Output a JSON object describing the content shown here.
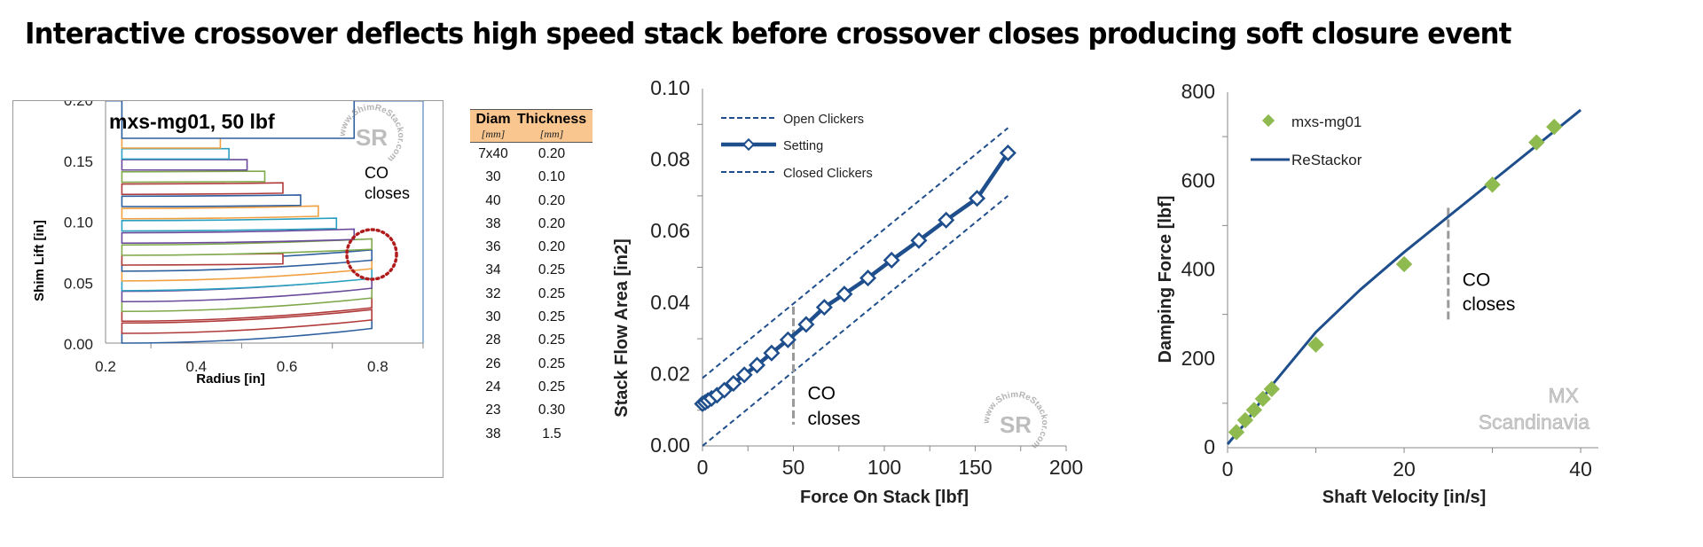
{
  "title": "Interactive crossover deflects high speed stack before crossover closes producing soft closure event",
  "watermark": {
    "text_top": "www.ShimReStackor.com",
    "logo": "SR"
  },
  "shim_table": {
    "headers": [
      "Diam",
      "Thickness"
    ],
    "units": [
      "[mm]",
      "[mm]"
    ],
    "rows": [
      [
        "7x40",
        "0.20"
      ],
      [
        "30",
        "0.10"
      ],
      [
        "40",
        "0.20"
      ],
      [
        "38",
        "0.20"
      ],
      [
        "36",
        "0.20"
      ],
      [
        "34",
        "0.25"
      ],
      [
        "32",
        "0.25"
      ],
      [
        "30",
        "0.25"
      ],
      [
        "28",
        "0.25"
      ],
      [
        "26",
        "0.25"
      ],
      [
        "24",
        "0.25"
      ],
      [
        "23",
        "0.30"
      ],
      [
        "38",
        "1.5"
      ]
    ]
  },
  "colors": {
    "navy": "#1f4e8c",
    "green": "#8fba4f",
    "orange": "#f0a040",
    "red_circle": "#b01c1c",
    "dashed_marker": "#9a9a9a",
    "table_header": "#fac690"
  },
  "chart_data": [
    {
      "type": "shim-deflection",
      "title": "mxs-mg01, 50 lbf",
      "xlabel": "Radius [in]",
      "ylabel": "Shim Lift [in]",
      "xlim": [
        0.2,
        0.9
      ],
      "ylim": [
        0.0,
        0.2
      ],
      "xticks": [
        "0.2",
        "0.4",
        "0.6",
        "0.8"
      ],
      "yticks": [
        "0.00",
        "0.05",
        "0.10",
        "0.15",
        "0.20"
      ],
      "annotation": "CO closes",
      "shims": [
        {
          "r_out": 0.787,
          "y0": 0.0,
          "lift": 0.012,
          "color": "#2e5f9e"
        },
        {
          "r_out": 0.787,
          "y0": 0.008,
          "lift": 0.011,
          "color": "#b03a3a"
        },
        {
          "r_out": 0.787,
          "y0": 0.018,
          "lift": 0.011,
          "color": "#b03a3a"
        },
        {
          "r_out": 0.787,
          "y0": 0.026,
          "lift": 0.011,
          "color": "#7fa84a"
        },
        {
          "r_out": 0.787,
          "y0": 0.034,
          "lift": 0.011,
          "color": "#6a4a9a"
        },
        {
          "r_out": 0.787,
          "y0": 0.043,
          "lift": 0.01,
          "color": "#2aa0c0"
        },
        {
          "r_out": 0.787,
          "y0": 0.051,
          "lift": 0.01,
          "color": "#f0a040"
        },
        {
          "r_out": 0.787,
          "y0": 0.059,
          "lift": 0.009,
          "color": "#2e5f9e"
        },
        {
          "r_out": 0.591,
          "y0": 0.064,
          "lift": 0.001,
          "color": "#b03a3a"
        },
        {
          "r_out": 0.787,
          "y0": 0.072,
          "lift": 0.005,
          "color": "#7fa84a"
        },
        {
          "r_out": 0.748,
          "y0": 0.082,
          "lift": 0.003,
          "color": "#6a4a9a"
        },
        {
          "r_out": 0.709,
          "y0": 0.092,
          "lift": 0.002,
          "color": "#2aa0c0"
        },
        {
          "r_out": 0.669,
          "y0": 0.102,
          "lift": 0.002,
          "color": "#f0a040"
        },
        {
          "r_out": 0.63,
          "y0": 0.112,
          "lift": 0.001,
          "color": "#2e5f9e"
        },
        {
          "r_out": 0.591,
          "y0": 0.122,
          "lift": 0.001,
          "color": "#b03a3a"
        },
        {
          "r_out": 0.551,
          "y0": 0.132,
          "lift": 0.0005,
          "color": "#7fa84a"
        },
        {
          "r_out": 0.512,
          "y0": 0.142,
          "lift": 0.0,
          "color": "#6a4a9a"
        },
        {
          "r_out": 0.472,
          "y0": 0.151,
          "lift": 0.0,
          "color": "#2aa0c0"
        },
        {
          "r_out": 0.453,
          "y0": 0.16,
          "lift": 0.0,
          "color": "#f0a040"
        },
        {
          "r_out": 0.748,
          "y0": 0.168,
          "lift": 0.0,
          "color": "#2e5f9e",
          "height": 0.032
        }
      ],
      "r_in": 0.236
    },
    {
      "type": "line",
      "xlabel": "Force On Stack [lbf]",
      "ylabel": "Stack Flow Area [in2]",
      "xlim": [
        0,
        200
      ],
      "ylim": [
        0.0,
        0.1
      ],
      "xticks": [
        "0",
        "50",
        "100",
        "150",
        "200"
      ],
      "yticks": [
        "0.00",
        "0.02",
        "0.04",
        "0.06",
        "0.08",
        "0.10"
      ],
      "legend": [
        "Open Clickers",
        "Setting",
        "Closed Clickers"
      ],
      "annotation": "CO closes",
      "annotation_x": 50,
      "series": [
        {
          "name": "Open Clickers",
          "style": "dashed",
          "x": [
            0,
            168
          ],
          "y": [
            0.019,
            0.089
          ]
        },
        {
          "name": "Setting",
          "style": "solid-marker",
          "x": [
            0,
            1.5,
            3,
            5,
            8,
            12,
            17,
            23,
            30,
            38,
            47,
            57,
            67,
            78,
            91,
            104,
            119,
            134,
            151,
            168
          ],
          "y": [
            0.0118,
            0.0122,
            0.0127,
            0.0133,
            0.0142,
            0.0156,
            0.0175,
            0.0199,
            0.0226,
            0.026,
            0.0297,
            0.034,
            0.0388,
            0.0425,
            0.047,
            0.052,
            0.0575,
            0.0632,
            0.0693,
            0.082
          ]
        },
        {
          "name": "Closed Clickers",
          "style": "dashed",
          "x": [
            0,
            168
          ],
          "y": [
            0.0,
            0.07
          ]
        }
      ]
    },
    {
      "type": "scatter+line",
      "xlabel": "Shaft Velocity [in/s]",
      "ylabel": "Damping Force [lbf]",
      "xlim": [
        0,
        42
      ],
      "ylim": [
        0,
        800
      ],
      "xticks": [
        "0",
        "20",
        "40"
      ],
      "yticks": [
        "0",
        "200",
        "400",
        "600",
        "800"
      ],
      "legend": [
        "mxs-mg01",
        "ReStackor"
      ],
      "annotation": "CO closes",
      "annotation_x": 25,
      "watermark": [
        "MX",
        "Scandinavia"
      ],
      "series": [
        {
          "name": "mxs-mg01",
          "style": "marker",
          "x": [
            1,
            2,
            3,
            4,
            5,
            10,
            20,
            30,
            35,
            37
          ],
          "y": [
            35,
            62,
            85,
            110,
            132,
            232,
            413,
            592,
            687,
            722
          ]
        },
        {
          "name": "ReStackor",
          "style": "line",
          "x": [
            0,
            2,
            5,
            10,
            15,
            20,
            25,
            30,
            35,
            40
          ],
          "y": [
            8,
            55,
            140,
            260,
            355,
            440,
            520,
            600,
            680,
            760
          ]
        }
      ]
    }
  ]
}
